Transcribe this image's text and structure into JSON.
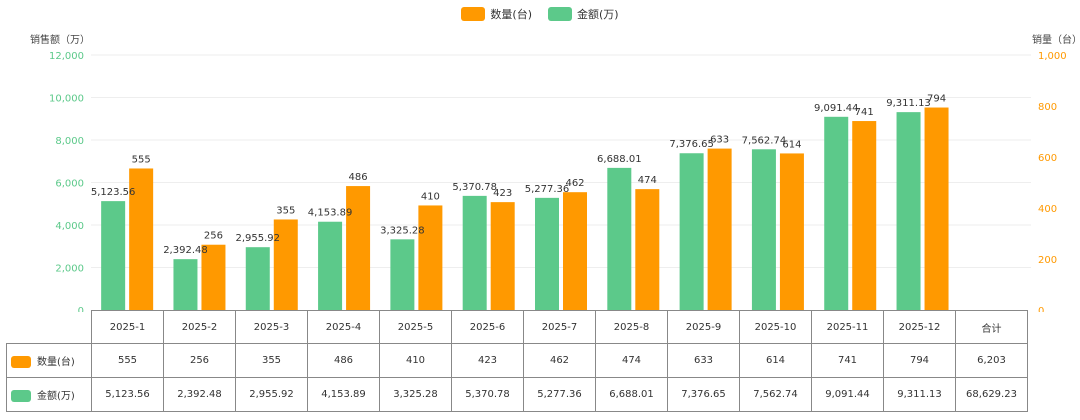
{
  "legend": [
    {
      "label": "数量(台)",
      "color": "#ff9900"
    },
    {
      "label": "金额(万)",
      "color": "#5cc98a"
    }
  ],
  "axes": {
    "left_title": "销售额（万）",
    "right_title": "销量（台）"
  },
  "table": {
    "total_label": "合计",
    "qty_label": "数量(台)",
    "amount_label": "金额(万)",
    "qty_values": [
      "555",
      "256",
      "355",
      "486",
      "410",
      "423",
      "462",
      "474",
      "633",
      "614",
      "741",
      "794"
    ],
    "amount_values": [
      "5,123.56",
      "2,392.48",
      "2,955.92",
      "4,153.89",
      "3,325.28",
      "5,370.78",
      "5,277.36",
      "6,688.01",
      "7,376.65",
      "7,562.74",
      "9,091.44",
      "9,311.13"
    ],
    "qty_total": "6,203",
    "amount_total": "68,629.23"
  },
  "chart_data": {
    "type": "bar",
    "title": "",
    "categories": [
      "2025-1",
      "2025-2",
      "2025-3",
      "2025-4",
      "2025-5",
      "2025-6",
      "2025-7",
      "2025-8",
      "2025-9",
      "2025-10",
      "2025-11",
      "2025-12"
    ],
    "series": [
      {
        "name": "金额(万)",
        "axis": "left",
        "color": "#5cc98a",
        "values": [
          5123.56,
          2392.48,
          2955.92,
          4153.89,
          3325.28,
          5370.78,
          5277.36,
          6688.01,
          7376.65,
          7562.74,
          9091.44,
          9311.13
        ],
        "labels": [
          "5,123.56",
          "2,392.48",
          "2,955.92",
          "4,153.89",
          "3,325.28",
          "5,370.78",
          "5,277.36",
          "6,688.01",
          "7,376.65",
          "7,562.74",
          "9,091.44",
          "9,311.13"
        ]
      },
      {
        "name": "数量(台)",
        "axis": "right",
        "color": "#ff9900",
        "values": [
          555,
          256,
          355,
          486,
          410,
          423,
          462,
          474,
          633,
          614,
          741,
          794
        ],
        "labels": [
          "555",
          "256",
          "355",
          "486",
          "410",
          "423",
          "462",
          "474",
          "633",
          "614",
          "741",
          "794"
        ]
      }
    ],
    "y_left": {
      "min": 0,
      "max": 12000,
      "ticks": [
        "0",
        "2,000",
        "4,000",
        "6,000",
        "8,000",
        "10,000",
        "12,000"
      ],
      "tick_values": [
        0,
        2000,
        4000,
        6000,
        8000,
        10000,
        12000
      ],
      "color": "#5cc98a"
    },
    "y_right": {
      "min": 0,
      "max": 1000,
      "ticks": [
        "0",
        "200",
        "400",
        "600",
        "800",
        "1,000"
      ],
      "tick_values": [
        0,
        200,
        400,
        600,
        800,
        1000
      ],
      "color": "#ff9900"
    },
    "grid": true,
    "legend_position": "top-center"
  }
}
